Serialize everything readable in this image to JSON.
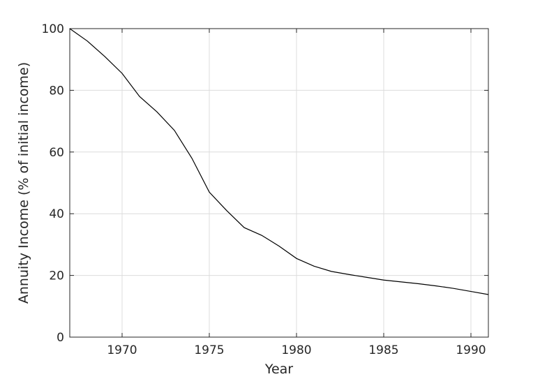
{
  "chart_data": {
    "type": "line",
    "xlabel": "Year",
    "ylabel": "Annuity Income (% of initial income)",
    "x": [
      1967,
      1968,
      1969,
      1970,
      1971,
      1972,
      1973,
      1974,
      1975,
      1976,
      1977,
      1978,
      1979,
      1980,
      1981,
      1982,
      1983,
      1984,
      1985,
      1986,
      1987,
      1988,
      1989,
      1990,
      1991
    ],
    "values": [
      100,
      96,
      91,
      85.5,
      78,
      73,
      67,
      58,
      47,
      41,
      35.5,
      33,
      29.5,
      25.5,
      23,
      21.3,
      20.3,
      19.4,
      18.5,
      17.9,
      17.3,
      16.6,
      15.8,
      14.8,
      13.8
    ],
    "color": "#000000",
    "xlim": [
      1967,
      1991
    ],
    "xticks": [
      1970,
      1975,
      1980,
      1985,
      1990
    ],
    "ylim": [
      0,
      100
    ],
    "yticks": [
      0,
      20,
      40,
      60,
      80,
      100
    ],
    "grid": true
  }
}
